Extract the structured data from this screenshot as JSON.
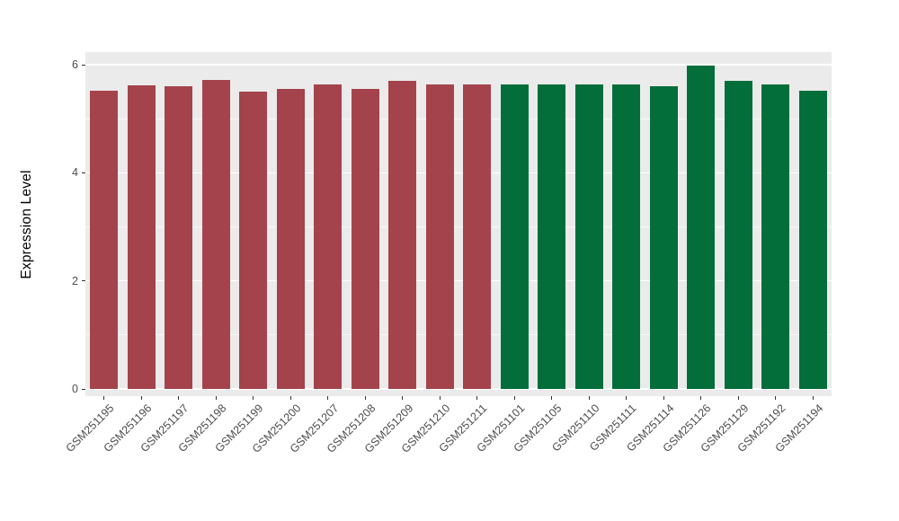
{
  "figure": {
    "background": "#FFFFFF",
    "panel_background": "#EBEBEB",
    "grid_major_color": "#FFFFFF",
    "grid_minor_color": "rgba(255,255,255,0.65)",
    "tick_mark_color": "#333333",
    "tick_label_color": "#4D4D4D",
    "axis_label_color": "#000000"
  },
  "chart_data": {
    "type": "bar",
    "title": "",
    "xlabel": "",
    "ylabel": "Expression Level",
    "ylim": [
      0,
      6.23
    ],
    "yticks": [
      0,
      2,
      4,
      6
    ],
    "ytick_labels": [
      "0",
      "2",
      "4",
      "6"
    ],
    "yticks_minor": [
      1,
      3,
      5
    ],
    "grid": true,
    "legend_position": "none",
    "categories": [
      "GSM251195",
      "GSM251196",
      "GSM251197",
      "GSM251198",
      "GSM251199",
      "GSM251200",
      "GSM251207",
      "GSM251208",
      "GSM251209",
      "GSM251210",
      "GSM251211",
      "GSM251101",
      "GSM251105",
      "GSM251110",
      "GSM251111",
      "GSM251114",
      "GSM251126",
      "GSM251129",
      "GSM251192",
      "GSM251194"
    ],
    "values": [
      5.52,
      5.62,
      5.6,
      5.72,
      5.5,
      5.55,
      5.63,
      5.55,
      5.7,
      5.63,
      5.63,
      5.63,
      5.63,
      5.63,
      5.63,
      5.6,
      5.98,
      5.7,
      5.63,
      5.52
    ],
    "groups": [
      {
        "name": "group-1",
        "color": "#A4434C",
        "start": 0,
        "end": 10
      },
      {
        "name": "group-2",
        "color": "#046E3B",
        "start": 11,
        "end": 19
      }
    ]
  }
}
